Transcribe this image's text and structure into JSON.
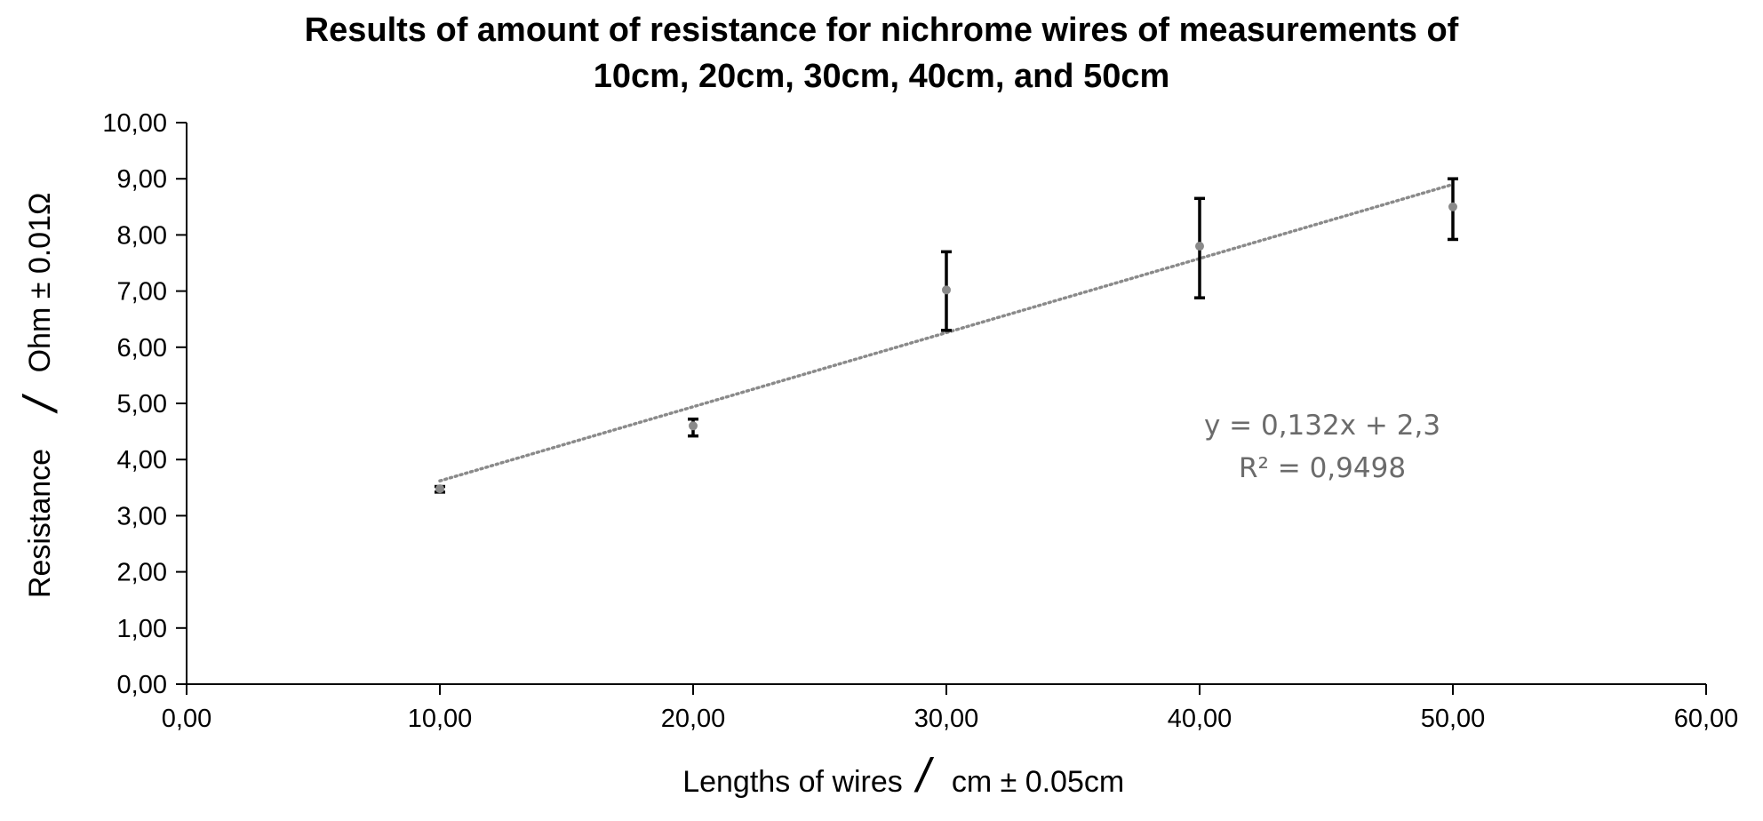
{
  "chart_data": {
    "type": "scatter",
    "title_line1": "Results of amount of resistance for nichrome wires of measurements of",
    "title_line2": "10cm, 20cm, 30cm, 40cm, and 50cm",
    "xlabel": {
      "quantity": "Lengths of wires",
      "slash": "/",
      "unit": "cm  ± 0.05cm"
    },
    "ylabel": {
      "quantity": "Resistance",
      "slash": "/",
      "unit": "Ohm ± 0.01Ω"
    },
    "xlim": [
      0,
      60
    ],
    "ylim": [
      0,
      10
    ],
    "x_ticks": [
      "0,00",
      "10,00",
      "20,00",
      "30,00",
      "40,00",
      "50,00",
      "60,00"
    ],
    "y_ticks": [
      "0,00",
      "1,00",
      "2,00",
      "3,00",
      "4,00",
      "5,00",
      "6,00",
      "7,00",
      "8,00",
      "9,00",
      "10,00"
    ],
    "x_tick_values": [
      0,
      10,
      20,
      30,
      40,
      50,
      60
    ],
    "y_tick_values": [
      0,
      1,
      2,
      3,
      4,
      5,
      6,
      7,
      8,
      9,
      10
    ],
    "grid": false,
    "points": [
      {
        "x": 10,
        "y": 3.48,
        "err_low": 3.42,
        "err_high": 3.52
      },
      {
        "x": 20,
        "y": 4.6,
        "err_low": 4.42,
        "err_high": 4.72
      },
      {
        "x": 30,
        "y": 7.02,
        "err_low": 6.3,
        "err_high": 7.7
      },
      {
        "x": 40,
        "y": 7.8,
        "err_low": 6.88,
        "err_high": 8.65
      },
      {
        "x": 50,
        "y": 8.5,
        "err_low": 7.92,
        "err_high": 9.0
      }
    ],
    "trendline": {
      "type": "linear",
      "slope": 0.132,
      "intercept": 2.3,
      "x_range": [
        10,
        50
      ],
      "equation": "y = 0,132x + 2,3",
      "r_squared": "R² = 0,9498"
    },
    "colors": {
      "marker": "#8a8a8a",
      "error_bar": "#000000",
      "trendline": "#8a8a8a",
      "annotation": "#6b6b6b"
    }
  }
}
